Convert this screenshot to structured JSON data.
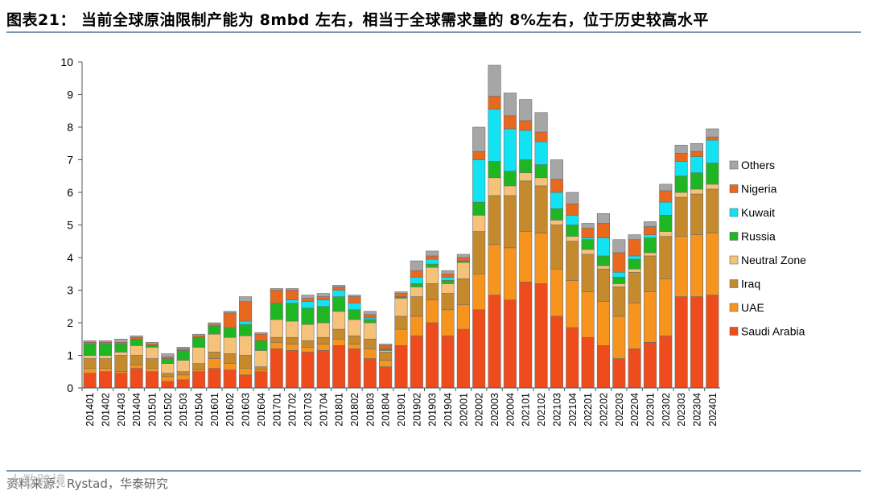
{
  "header": {
    "title": "图表21：  当前全球原油限制产能为 8mbd 左右，相当于全球需求量的 8%左右，位于历史较高水平"
  },
  "footer": {
    "source": "资料来源：Rystad，华泰研究",
    "watermark": "大数跨境"
  },
  "colors": {
    "rule": "#7e98b0",
    "Saudi Arabia": "#ee4c1c",
    "UAE": "#f7941d",
    "Iraq": "#c68a2e",
    "Neutral Zone": "#f6c27a",
    "Russia": "#1fb624",
    "Kuwait": "#11e3f2",
    "Nigeria": "#e8681e",
    "Others": "#a6a6a6"
  },
  "chart_data": {
    "type": "bar",
    "stacked": true,
    "title": "",
    "xlabel": "",
    "ylabel": "",
    "ylim": [
      0,
      10
    ],
    "yticks": [
      0,
      1,
      2,
      3,
      4,
      5,
      6,
      7,
      8,
      9,
      10
    ],
    "grid": false,
    "legend_position": "right",
    "legend_order": [
      "Others",
      "Nigeria",
      "Kuwait",
      "Russia",
      "Neutral Zone",
      "Iraq",
      "UAE",
      "Saudi Arabia"
    ],
    "categories": [
      "201401",
      "201402",
      "201403",
      "201404",
      "201501",
      "201502",
      "201503",
      "201504",
      "201601",
      "201602",
      "201603",
      "201604",
      "201701",
      "201702",
      "201703",
      "201704",
      "201801",
      "201802",
      "201803",
      "201804",
      "201901",
      "201902",
      "201903",
      "201904",
      "202001",
      "202002",
      "202003",
      "202004",
      "202101",
      "202102",
      "202103",
      "202104",
      "202201",
      "202202",
      "202203",
      "202204",
      "202301",
      "202302",
      "202303",
      "202304",
      "202401"
    ],
    "series": [
      {
        "name": "Saudi Arabia",
        "values": [
          0.45,
          0.5,
          0.45,
          0.6,
          0.5,
          0.2,
          0.25,
          0.5,
          0.6,
          0.55,
          0.4,
          0.5,
          1.2,
          1.15,
          1.1,
          1.15,
          1.3,
          1.2,
          0.9,
          0.65,
          1.3,
          1.6,
          2.0,
          1.6,
          1.8,
          2.4,
          2.85,
          2.7,
          3.25,
          3.2,
          2.2,
          1.85,
          1.55,
          1.3,
          0.9,
          1.2,
          1.4,
          1.6,
          2.8,
          2.8,
          2.85
        ]
      },
      {
        "name": "UAE",
        "values": [
          0.15,
          0.1,
          0.05,
          0.1,
          0.1,
          0.15,
          0.15,
          0.05,
          0.3,
          0.2,
          0.2,
          0.05,
          0.2,
          0.2,
          0.15,
          0.2,
          0.2,
          0.15,
          0.3,
          0.2,
          0.5,
          0.6,
          0.7,
          0.8,
          0.75,
          1.1,
          1.55,
          1.6,
          1.55,
          1.55,
          1.45,
          1.45,
          1.4,
          1.35,
          1.3,
          1.4,
          1.55,
          1.75,
          1.85,
          1.9,
          1.9
        ]
      },
      {
        "name": "Iraq",
        "values": [
          0.3,
          0.3,
          0.5,
          0.3,
          0.3,
          0.1,
          0.1,
          0.2,
          0.2,
          0.3,
          0.4,
          0.1,
          0.15,
          0.2,
          0.2,
          0.2,
          0.3,
          0.25,
          0.3,
          0.25,
          0.4,
          0.6,
          0.5,
          0.5,
          0.8,
          1.3,
          1.5,
          1.6,
          1.55,
          1.45,
          1.35,
          1.2,
          1.15,
          1.0,
          0.9,
          0.95,
          1.1,
          1.3,
          1.2,
          1.25,
          1.35
        ]
      },
      {
        "name": "Neutral Zone",
        "values": [
          0.1,
          0.1,
          0.1,
          0.3,
          0.35,
          0.3,
          0.35,
          0.5,
          0.55,
          0.5,
          0.6,
          0.5,
          0.55,
          0.5,
          0.5,
          0.45,
          0.55,
          0.5,
          0.5,
          0.05,
          0.55,
          0.3,
          0.5,
          0.3,
          0.5,
          0.5,
          0.55,
          0.3,
          0.25,
          0.25,
          0.15,
          0.15,
          0.15,
          0.1,
          0.1,
          0.1,
          0.1,
          0.15,
          0.15,
          0.15,
          0.15
        ]
      },
      {
        "name": "Russia",
        "values": [
          0.35,
          0.35,
          0.25,
          0.2,
          0.05,
          0.15,
          0.3,
          0.3,
          0.25,
          0.3,
          0.35,
          0.3,
          0.5,
          0.55,
          0.5,
          0.5,
          0.45,
          0.3,
          0.1,
          0.05,
          0.05,
          0.1,
          0.1,
          0.1,
          0.05,
          0.4,
          0.5,
          0.45,
          0.4,
          0.4,
          0.35,
          0.35,
          0.3,
          0.3,
          0.2,
          0.3,
          0.45,
          0.5,
          0.5,
          0.5,
          0.65
        ]
      },
      {
        "name": "Kuwait",
        "values": [
          0,
          0,
          0,
          0,
          0,
          0,
          0,
          0,
          0,
          0,
          0.1,
          0,
          0,
          0.1,
          0.2,
          0.2,
          0.2,
          0.2,
          0.05,
          0,
          0,
          0.2,
          0.15,
          0.1,
          0,
          1.3,
          1.6,
          1.3,
          0.9,
          0.7,
          0.5,
          0.3,
          0.05,
          0.55,
          0.15,
          0.1,
          0.1,
          0.4,
          0.45,
          0.5,
          0.7
        ]
      },
      {
        "name": "Nigeria",
        "values": [
          0.05,
          0.05,
          0.05,
          0.05,
          0.05,
          0.05,
          0.05,
          0.05,
          0.05,
          0.45,
          0.6,
          0.2,
          0.4,
          0.3,
          0.1,
          0.1,
          0.1,
          0.2,
          0.1,
          0.1,
          0.1,
          0.2,
          0.1,
          0.1,
          0.1,
          0.25,
          0.4,
          0.4,
          0.3,
          0.3,
          0.4,
          0.35,
          0.3,
          0.45,
          0.6,
          0.5,
          0.25,
          0.35,
          0.25,
          0.15,
          0.1
        ]
      },
      {
        "name": "Others",
        "values": [
          0.05,
          0.05,
          0.1,
          0.05,
          0.05,
          0.1,
          0.05,
          0.05,
          0.05,
          0.05,
          0.15,
          0.05,
          0.05,
          0.05,
          0.1,
          0.1,
          0.05,
          0.05,
          0.1,
          0.05,
          0.05,
          0.3,
          0.15,
          0.1,
          0.1,
          0.75,
          0.95,
          0.7,
          0.65,
          0.6,
          0.6,
          0.35,
          0.15,
          0.3,
          0.4,
          0.15,
          0.15,
          0.2,
          0.25,
          0.25,
          0.25
        ]
      }
    ]
  }
}
